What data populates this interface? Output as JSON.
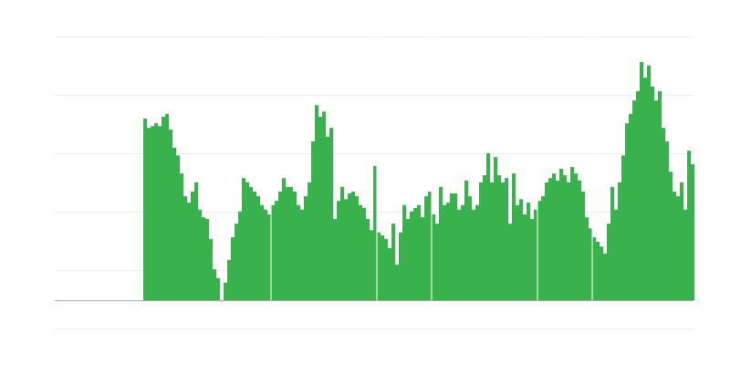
{
  "chart_data": {
    "type": "bar",
    "title": "",
    "xlabel": "",
    "ylabel": "",
    "ylim": [
      -0.5,
      4.5
    ],
    "gridlines": [
      -0.48,
      0.52,
      1.52,
      2.52,
      3.52,
      4.52
    ],
    "grid": true,
    "bar_color": "#39b14c",
    "grid_color": "#eeeeee",
    "baseline_color": "#aaaaaa",
    "separators_after_index": [
      58,
      87,
      102,
      131,
      146
    ],
    "values": [
      0,
      0,
      0,
      0,
      0,
      0,
      0,
      0,
      0,
      0,
      0,
      0,
      0,
      0,
      0,
      0,
      0,
      0,
      0,
      0,
      0,
      0,
      0,
      0,
      3.11,
      2.95,
      2.98,
      3.03,
      2.98,
      3.14,
      3.19,
      2.92,
      2.61,
      2.48,
      2.17,
      1.78,
      1.67,
      1.86,
      2.02,
      1.55,
      1.42,
      1.39,
      1.05,
      0.53,
      0.38,
      -0.02,
      0.3,
      0.69,
      1.08,
      1.31,
      1.52,
      2.09,
      2.02,
      1.94,
      1.86,
      1.78,
      1.63,
      1.55,
      1.47,
      1.63,
      1.7,
      1.86,
      2.09,
      1.94,
      1.94,
      1.86,
      1.63,
      1.55,
      1.78,
      2.02,
      2.72,
      3.34,
      3.14,
      3.23,
      2.8,
      2.95,
      1.39,
      1.7,
      1.94,
      1.73,
      1.83,
      1.86,
      1.78,
      1.63,
      1.58,
      1.39,
      1.2,
      2.3,
      1.16,
      1.11,
      1.05,
      0.89,
      1.31,
      0.61,
      1.16,
      1.63,
      1.39,
      1.52,
      1.58,
      1.63,
      1.42,
      1.78,
      1.86,
      1.47,
      1.31,
      1.94,
      1.63,
      1.67,
      1.83,
      1.83,
      1.55,
      1.63,
      2.05,
      1.78,
      1.55,
      1.63,
      2.02,
      2.14,
      2.52,
      2.02,
      2.45,
      2.14,
      2.02,
      2.09,
      1.31,
      2.17,
      1.63,
      1.73,
      1.47,
      1.67,
      1.39,
      1.55,
      1.7,
      1.78,
      2.02,
      2.09,
      2.17,
      2.05,
      2.25,
      2.14,
      2.02,
      2.28,
      2.17,
      2.05,
      1.86,
      1.42,
      1.23,
      1.08,
      1.0,
      0.92,
      0.8,
      1.31,
      1.94,
      1.55,
      2.02,
      2.48,
      3.03,
      3.19,
      3.42,
      3.58,
      4.08,
      3.81,
      4.02,
      3.66,
      3.42,
      3.58,
      2.95,
      2.72,
      2.2,
      1.86,
      1.78,
      2.02,
      1.55,
      2.56,
      2.33
    ]
  }
}
